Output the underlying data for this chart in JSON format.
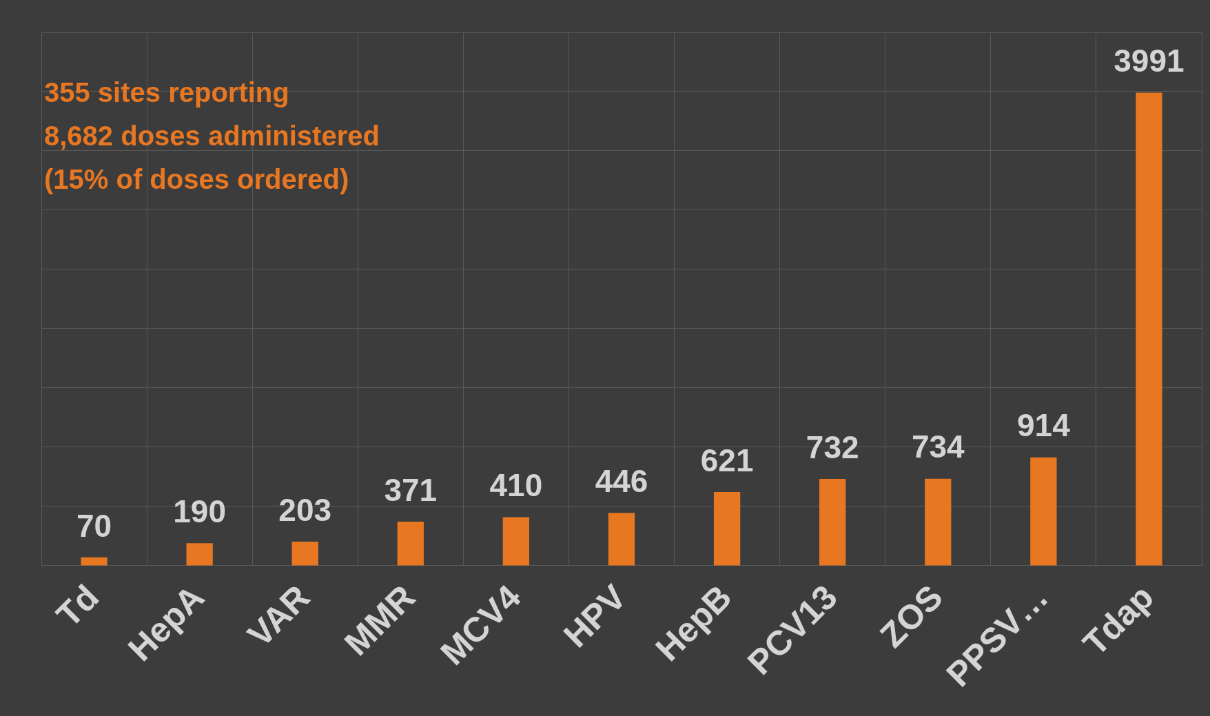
{
  "chart_data": {
    "type": "bar",
    "categories": [
      "Td",
      "HepA",
      "VAR",
      "MMR",
      "MCV4",
      "HPV",
      "HepB",
      "PCV13",
      "ZOS",
      "PPSV…",
      "Tdap"
    ],
    "values": [
      70,
      190,
      203,
      371,
      410,
      446,
      621,
      732,
      734,
      914,
      3991
    ],
    "color": "#e87722",
    "data_labels": true,
    "ylim": [
      0,
      4500
    ],
    "tick_labels": "x",
    "grid": true,
    "legend": false,
    "annotations": [
      "355 sites reporting",
      "8,682 doses administered",
      "(15% of doses ordered)"
    ]
  }
}
